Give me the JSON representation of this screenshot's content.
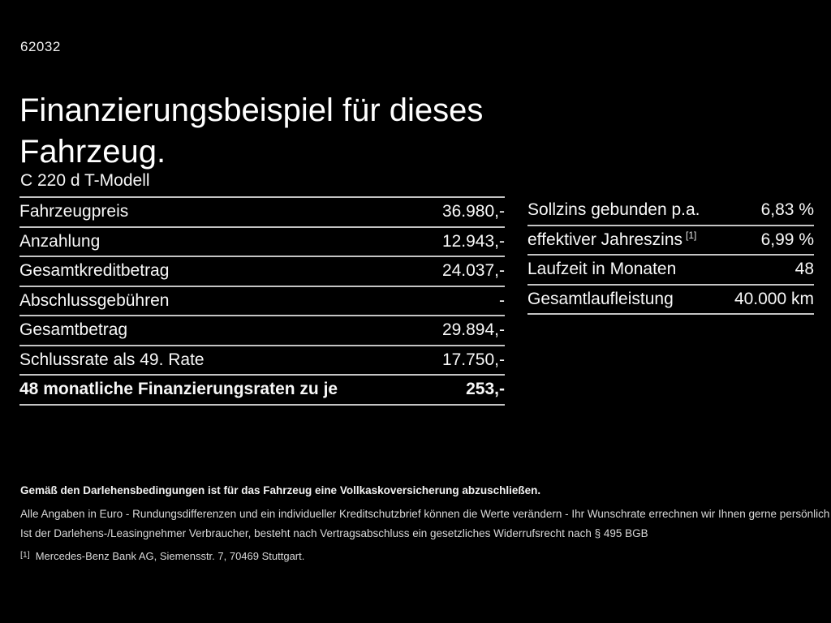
{
  "page": {
    "doc_number": "62032",
    "title": "Finanzierungsbeispiel für dieses Fahrzeug.",
    "model": "C 220 d T-Modell"
  },
  "finance_table": {
    "rows": [
      {
        "label": "Fahrzeugpreis",
        "value": "36.980,-"
      },
      {
        "label": "Anzahlung",
        "value": "12.943,-"
      },
      {
        "label": "Gesamtkreditbetrag",
        "value": "24.037,-"
      },
      {
        "label": "Abschlussgebühren",
        "value": "-"
      },
      {
        "label": "Gesamtbetrag",
        "value": "29.894,-"
      },
      {
        "label": "Schlussrate als 49. Rate",
        "value": "17.750,-"
      },
      {
        "label": "48 monatliche Finanzierungsraten zu je",
        "value": "253,-"
      }
    ]
  },
  "conditions_table": {
    "rows": [
      {
        "label": "Sollzins gebunden p.a.",
        "marker": "",
        "value": "6,83 %"
      },
      {
        "label": "effektiver Jahreszins",
        "marker": "[1]",
        "value": "6,99 %"
      },
      {
        "label": "Laufzeit in Monaten",
        "marker": "",
        "value": "48"
      },
      {
        "label": "Gesamtlaufleistung",
        "marker": "",
        "value": "40.000 km"
      }
    ]
  },
  "disclaimers": {
    "insurance_note": "Gemäß den Darlehensbedingungen ist für das Fahrzeug eine Vollkaskoversicherung abzuschließen.",
    "values_note": "Alle Angaben in Euro - Rundungsdifferenzen und ein individueller Kreditschutzbrief können die Werte verändern - Ihr Wunschrate errechnen wir Ihnen gerne persönlich",
    "withdrawal_note": "Ist der Darlehens-/Leasingnehmer Verbraucher, besteht nach Vertragsabschluss ein gesetzliches Widerrufsrecht nach § 495 BGB",
    "footnote_marker": "[1]",
    "footnote_text": "Mercedes-Benz Bank AG, Siemensstr. 7, 70469 Stuttgart."
  },
  "colors": {
    "background": "#000000",
    "text": "#ffffff",
    "separator": "#c4c4c4"
  }
}
